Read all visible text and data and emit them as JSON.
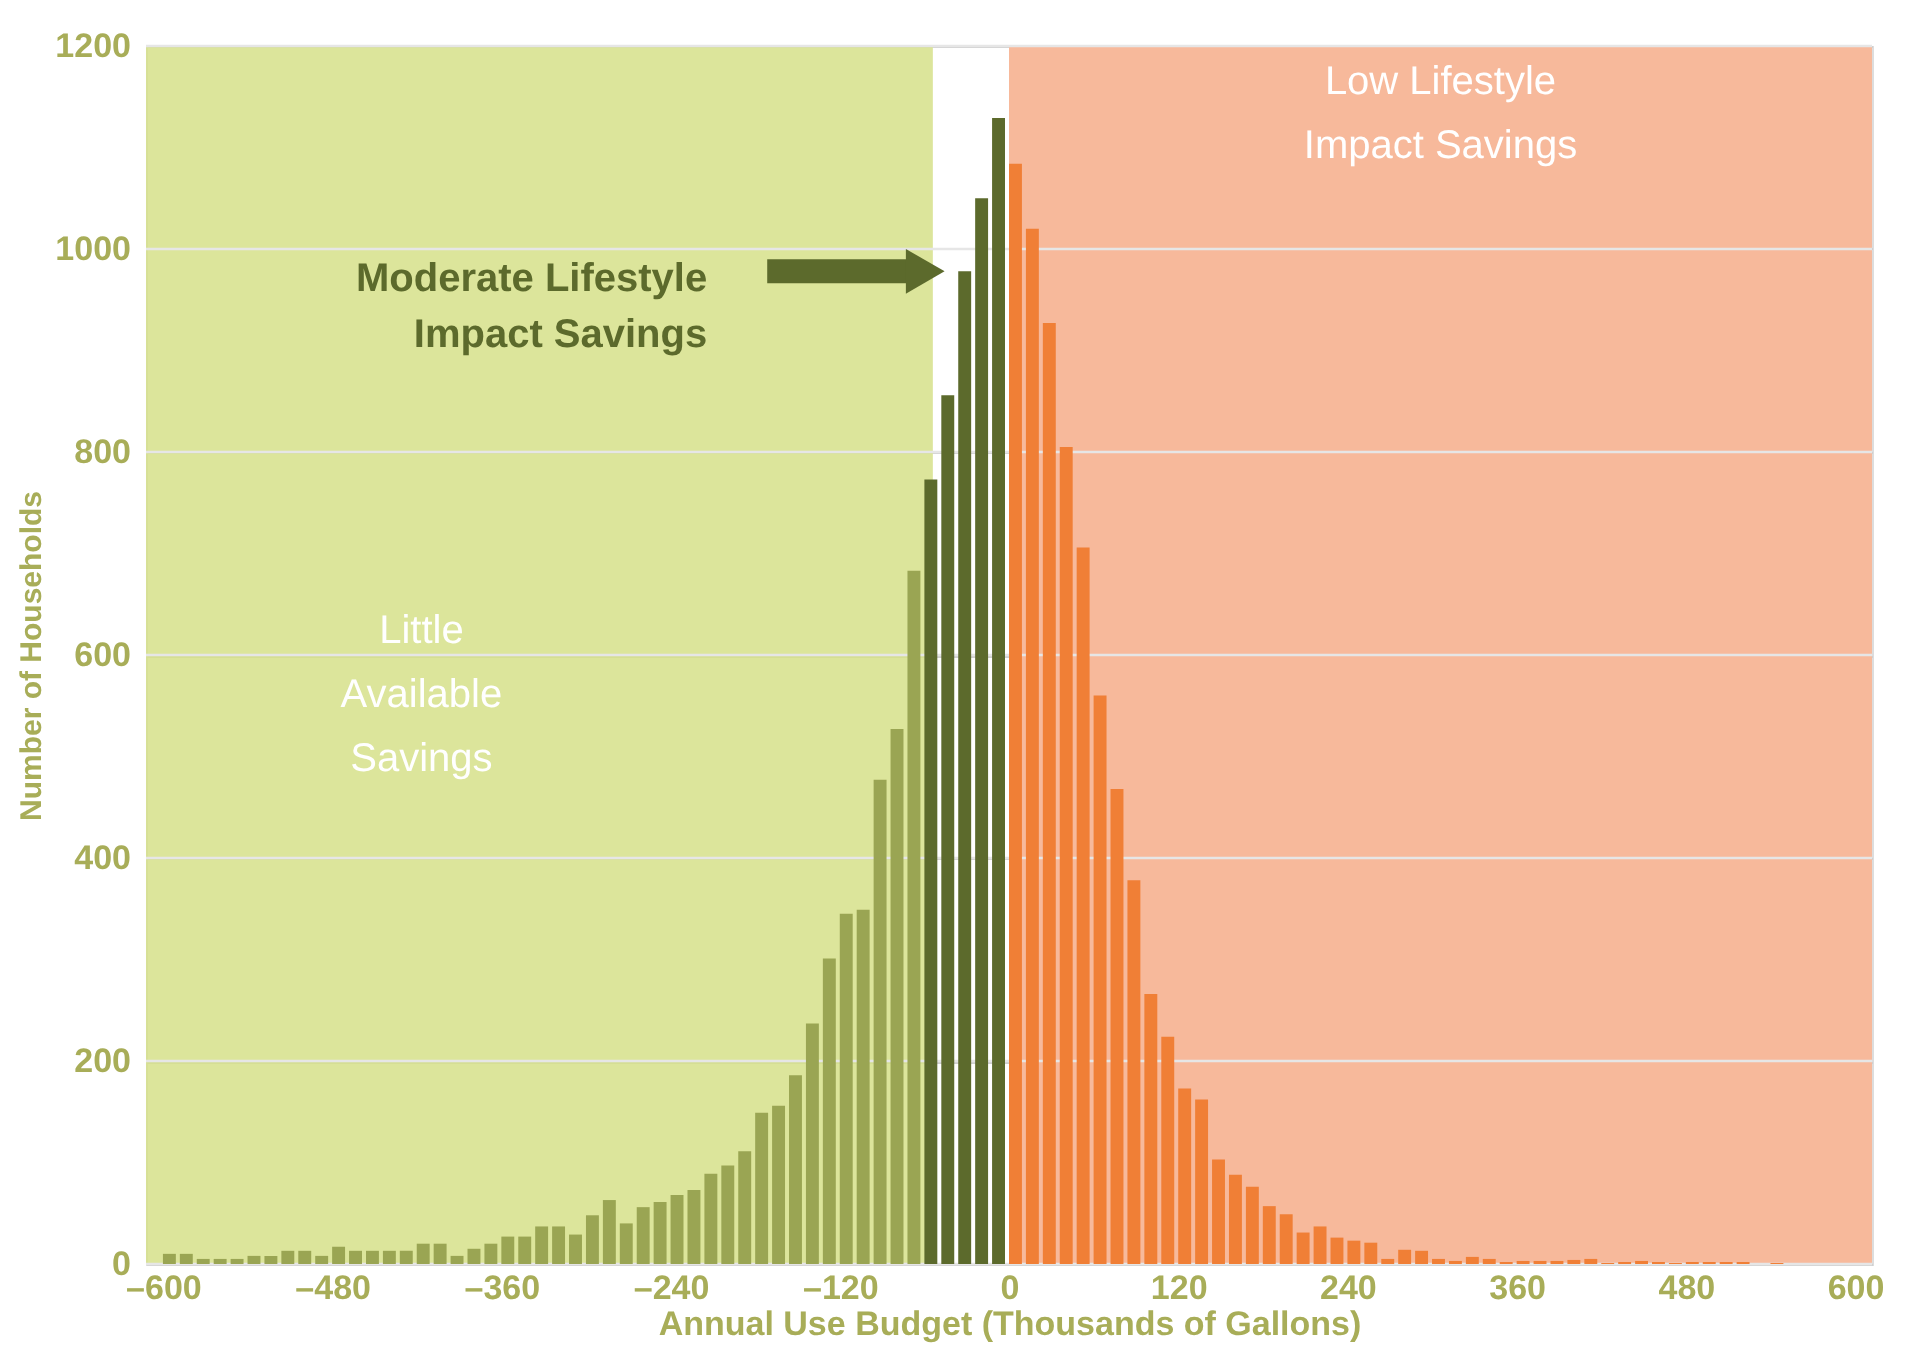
{
  "chart_data": {
    "type": "histogram",
    "xlabel": "Annual Use Budget (Thousands of Gallons)",
    "ylabel": "Number of Households",
    "bins": [
      -600,
      -588,
      -576,
      -564,
      -552,
      -540,
      -528,
      -516,
      -504,
      -492,
      -480,
      -468,
      -456,
      -444,
      -432,
      -420,
      -408,
      -396,
      -384,
      -372,
      -360,
      -348,
      -336,
      -324,
      -312,
      -300,
      -288,
      -276,
      -264,
      -252,
      -240,
      -228,
      -216,
      -204,
      -192,
      -180,
      -168,
      -156,
      -144,
      -132,
      -120,
      -108,
      -96,
      -84,
      -72,
      -60,
      -48,
      -36,
      -24,
      -12,
      0,
      12,
      24,
      36,
      48,
      60,
      72,
      84,
      96,
      108,
      120,
      132,
      144,
      156,
      168,
      180,
      192,
      204,
      216,
      228,
      240,
      252,
      264,
      276,
      288,
      300,
      312,
      324,
      336,
      348,
      360,
      372,
      384,
      396,
      408,
      420,
      432,
      444,
      456,
      468,
      480,
      492,
      504,
      516,
      528,
      540,
      552,
      564,
      576,
      588,
      600
    ],
    "values": [
      10,
      10,
      5,
      5,
      5,
      8,
      8,
      13,
      13,
      8,
      17,
      13,
      13,
      13,
      13,
      20,
      20,
      8,
      15,
      20,
      27,
      27,
      37,
      37,
      29,
      48,
      63,
      40,
      56,
      61,
      68,
      73,
      89,
      97,
      111,
      149,
      156,
      186,
      237,
      301,
      345,
      349,
      477,
      527,
      683,
      773,
      856,
      978,
      1050,
      1129,
      1084,
      1020,
      927,
      805,
      706,
      560,
      468,
      378,
      266,
      224,
      173,
      162,
      103,
      88,
      76,
      57,
      49,
      31,
      37,
      26,
      23,
      21,
      5,
      14,
      13,
      5,
      3,
      7,
      5,
      2,
      3,
      3,
      3,
      4,
      5,
      1,
      2,
      3,
      2,
      1,
      2,
      2,
      2,
      2,
      0,
      1,
      0,
      0,
      0,
      0
    ],
    "colors": [
      "#9aa553",
      "#9aa553",
      "#9aa553",
      "#9aa553",
      "#9aa553",
      "#9aa553",
      "#9aa553",
      "#9aa553",
      "#9aa553",
      "#9aa553",
      "#9aa553",
      "#9aa553",
      "#9aa553",
      "#9aa553",
      "#9aa553",
      "#9aa553",
      "#9aa553",
      "#9aa553",
      "#9aa553",
      "#9aa553",
      "#9aa553",
      "#9aa553",
      "#9aa553",
      "#9aa553",
      "#9aa553",
      "#9aa553",
      "#9aa553",
      "#9aa553",
      "#9aa553",
      "#9aa553",
      "#9aa553",
      "#9aa553",
      "#9aa553",
      "#9aa553",
      "#9aa553",
      "#9aa553",
      "#9aa553",
      "#9aa553",
      "#9aa553",
      "#9aa553",
      "#9aa553",
      "#9aa553",
      "#9aa553",
      "#9aa553",
      "#9aa553",
      "#5c6a2c",
      "#5c6a2c",
      "#5c6a2c",
      "#5c6a2c",
      "#5c6a2c",
      "#f07f36",
      "#f07f36",
      "#f07f36",
      "#f07f36",
      "#f07f36",
      "#f07f36",
      "#f07f36",
      "#f07f36",
      "#f07f36",
      "#f07f36",
      "#f07f36",
      "#f07f36",
      "#f07f36",
      "#f07f36",
      "#f07f36",
      "#f07f36",
      "#f07f36",
      "#f07f36",
      "#f07f36",
      "#f07f36",
      "#f07f36",
      "#f07f36",
      "#f07f36",
      "#f07f36",
      "#f07f36",
      "#f07f36",
      "#f07f36",
      "#f07f36",
      "#f07f36",
      "#f07f36",
      "#f07f36",
      "#f07f36",
      "#f07f36",
      "#f07f36",
      "#f07f36",
      "#f07f36",
      "#f07f36",
      "#f07f36",
      "#f07f36",
      "#f07f36",
      "#f07f36",
      "#f07f36",
      "#f07f36",
      "#f07f36",
      "#f07f36",
      "#f07f36",
      "#f07f36",
      "#f07f36",
      "#f07f36",
      "#f07f36"
    ],
    "xlim": [
      -612,
      612
    ],
    "ylim": [
      0,
      1200
    ],
    "xticks": [
      {
        "value": -600,
        "label": "–600"
      },
      {
        "value": -480,
        "label": "–480"
      },
      {
        "value": -360,
        "label": "–360"
      },
      {
        "value": -240,
        "label": "–240"
      },
      {
        "value": -120,
        "label": "–120"
      },
      0,
      120,
      240,
      360,
      480,
      600
    ],
    "yticks": [
      0,
      200,
      400,
      600,
      800,
      1000,
      1200
    ],
    "grid": "y",
    "bands": [
      {
        "axis": "x",
        "from": -612,
        "to": -54,
        "label": "Little\nAvailable\nSavings",
        "color": "#d6e08a"
      },
      {
        "axis": "x",
        "from": 0,
        "to": 612,
        "label": "Low Lifestyle\nImpact Savings",
        "color": "#f7b99b"
      }
    ],
    "annotations": [
      "Moderate Lifestyle\nImpact Savings"
    ]
  }
}
